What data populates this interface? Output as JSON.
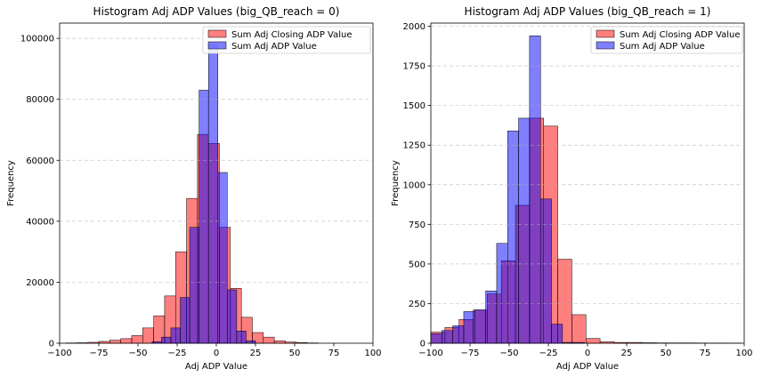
{
  "chart_data": [
    {
      "type": "bar",
      "title": "Histogram Adj ADP Values (big_QB_reach = 0)",
      "xlabel": "Adj ADP Value",
      "ylabel": "Frequency",
      "xlim": [
        -100,
        100
      ],
      "ylim": [
        0,
        105000
      ],
      "xticks": [
        "−100",
        "−75",
        "−50",
        "−25",
        "0",
        "25",
        "50",
        "75",
        "100"
      ],
      "xtick_values": [
        -100,
        -75,
        -50,
        -25,
        0,
        25,
        50,
        75,
        100
      ],
      "yticks": [
        "0",
        "20000",
        "40000",
        "60000",
        "80000",
        "100000"
      ],
      "ytick_values": [
        0,
        20000,
        40000,
        60000,
        80000,
        100000
      ],
      "grid": "y-dashed",
      "legend_position": "top-right",
      "series": [
        {
          "name": "Sum Adj Closing ADP Value",
          "color": "#ff0000",
          "bin_edges": [
            -96,
            -89,
            -82,
            -75,
            -68,
            -61,
            -54,
            -47,
            -40,
            -33,
            -26,
            -19,
            -12,
            -5,
            2,
            9,
            16,
            23,
            30,
            37,
            44,
            51,
            58,
            65
          ],
          "counts": [
            100,
            150,
            300,
            600,
            1000,
            1500,
            2500,
            5000,
            9000,
            15500,
            30000,
            47500,
            68500,
            65500,
            38000,
            18000,
            8500,
            3500,
            2000,
            800,
            400,
            200,
            100
          ]
        },
        {
          "name": "Sum Adj ADP Value",
          "color": "#0000ff",
          "bin_edges": [
            -41,
            -35,
            -29,
            -23,
            -17,
            -11,
            -5,
            1,
            7,
            13,
            19,
            25
          ],
          "counts": [
            500,
            2000,
            5000,
            15000,
            38000,
            83000,
            98000,
            56000,
            17500,
            4000,
            800
          ]
        }
      ]
    },
    {
      "type": "bar",
      "title": "Histogram Adj ADP Values (big_QB_reach = 1)",
      "xlabel": "Adj ADP Value",
      "ylabel": "Frequency",
      "xlim": [
        -100,
        100
      ],
      "ylim": [
        0,
        2020
      ],
      "xticks": [
        "−100",
        "−75",
        "−50",
        "−25",
        "0",
        "25",
        "50",
        "75",
        "100"
      ],
      "xtick_values": [
        -100,
        -75,
        -50,
        -25,
        0,
        25,
        50,
        75,
        100
      ],
      "yticks": [
        "0",
        "250",
        "500",
        "750",
        "1000",
        "1250",
        "1500",
        "1750",
        "2000"
      ],
      "ytick_values": [
        0,
        250,
        500,
        750,
        1000,
        1250,
        1500,
        1750,
        2000
      ],
      "grid": "y-dashed",
      "legend_position": "top-right",
      "series": [
        {
          "name": "Sum Adj Closing ADP Value",
          "color": "#ff0000",
          "bin_edges": [
            -100,
            -91,
            -82,
            -73,
            -64,
            -55,
            -46,
            -37,
            -28,
            -19,
            -10,
            -1,
            8,
            17,
            26,
            35,
            44,
            53,
            62,
            71,
            80,
            89,
            98
          ],
          "counts": [
            70,
            100,
            150,
            210,
            310,
            520,
            870,
            1420,
            1370,
            530,
            180,
            30,
            10,
            5,
            5,
            3,
            2,
            2,
            2,
            1,
            1,
            1
          ]
        },
        {
          "name": "Sum Adj ADP Value",
          "color": "#0000ff",
          "bin_edges": [
            -100,
            -93,
            -86,
            -79,
            -72,
            -65,
            -58,
            -51,
            -44,
            -37,
            -30,
            -23,
            -16,
            -9,
            -2
          ],
          "counts": [
            60,
            80,
            110,
            200,
            210,
            330,
            630,
            1340,
            1420,
            1940,
            910,
            120,
            5,
            5
          ]
        }
      ]
    }
  ]
}
